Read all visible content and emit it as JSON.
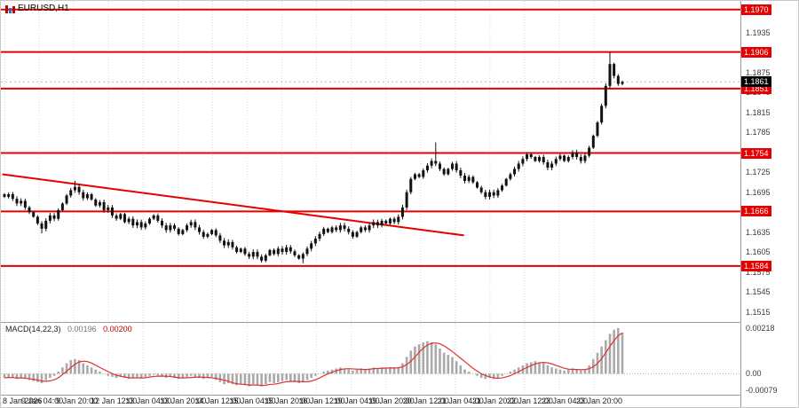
{
  "window": {
    "symbol": "EURUSD,H1"
  },
  "colors": {
    "level_line": "#e60000",
    "candle": "#111111",
    "histogram": "#a9a9a9",
    "signal_line": "#e03030",
    "grid": "#d9d9d9",
    "current_dotted": "#bcbcbc",
    "separator": "#9c9c9c"
  },
  "indicator": {
    "name": "MACD(14,22,3)",
    "value_main": "0.00196",
    "value_signal": "0.00200"
  },
  "price_axis": {
    "ticks": [
      "1.1935",
      "1.1875",
      "1.1845",
      "1.1815",
      "1.1785",
      "1.1725",
      "1.1695",
      "1.1635",
      "1.1605",
      "1.1575",
      "1.1545",
      "1.1515"
    ],
    "level_labels": [
      "1.1970",
      "1.1906",
      "1.1851",
      "1.1754",
      "1.1666",
      "1.1584"
    ],
    "current_label": "1.1861"
  },
  "time_axis": {
    "labels": [
      "8 Jan 2026",
      "9 Jan 04:00",
      "9 Jan 20:00",
      "12 Jan 12:00",
      "13 Jan 04:00",
      "13 Jan 20:00",
      "14 Jan 12:00",
      "15 Jan 04:00",
      "15 Jan 20:00",
      "16 Jan 12:00",
      "19 Jan 04:00",
      "19 Jan 20:00",
      "20 Jan 12:00",
      "21 Jan 04:00",
      "21 Jan 20:00",
      "22 Jan 12:00",
      "23 Jan 04:00",
      "23 Jan 20:00"
    ]
  },
  "chart_data": [
    {
      "type": "candlestick",
      "title": "EURUSD H1",
      "ylim": [
        1.1505,
        1.1975
      ],
      "levels": [
        1.197,
        1.1906,
        1.1851,
        1.1754,
        1.1666,
        1.1584
      ],
      "current_price": 1.1861,
      "trendline": {
        "from_x_frac": 0.002,
        "from_price": 1.1722,
        "to_x_frac": 0.624,
        "to_price": 1.163
      },
      "closes": [
        1.1688,
        1.1692,
        1.1685,
        1.1678,
        1.1682,
        1.1672,
        1.1665,
        1.1658,
        1.1648,
        1.164,
        1.1652,
        1.166,
        1.1655,
        1.1668,
        1.1678,
        1.169,
        1.1698,
        1.1703,
        1.1695,
        1.1686,
        1.1692,
        1.1684,
        1.1675,
        1.168,
        1.1668,
        1.1672,
        1.166,
        1.1655,
        1.1662,
        1.165,
        1.1655,
        1.1645,
        1.165,
        1.1642,
        1.1648,
        1.1655,
        1.166,
        1.1652,
        1.1645,
        1.1638,
        1.1645,
        1.164,
        1.1632,
        1.1638,
        1.1645,
        1.165,
        1.1642,
        1.1635,
        1.1628,
        1.1632,
        1.1638,
        1.163,
        1.1622,
        1.1615,
        1.162,
        1.1612,
        1.1605,
        1.161,
        1.1602,
        1.1598,
        1.1605,
        1.1598,
        1.1592,
        1.16,
        1.1608,
        1.1602,
        1.161,
        1.1605,
        1.1612,
        1.1606,
        1.16,
        1.1595,
        1.1602,
        1.161,
        1.1618,
        1.1625,
        1.1632,
        1.164,
        1.1635,
        1.1642,
        1.1638,
        1.1645,
        1.164,
        1.1635,
        1.1628,
        1.1635,
        1.1642,
        1.1638,
        1.1645,
        1.165,
        1.1645,
        1.1652,
        1.1648,
        1.1655,
        1.165,
        1.1658,
        1.1672,
        1.1695,
        1.1715,
        1.1722,
        1.1718,
        1.1728,
        1.1735,
        1.1742,
        1.1738,
        1.173,
        1.1722,
        1.173,
        1.1738,
        1.1728,
        1.172,
        1.1712,
        1.1718,
        1.171,
        1.1702,
        1.1695,
        1.1688,
        1.1695,
        1.169,
        1.1698,
        1.1705,
        1.1715,
        1.1722,
        1.173,
        1.1738,
        1.1745,
        1.1752,
        1.1748,
        1.1742,
        1.1748,
        1.174,
        1.1732,
        1.1738,
        1.1745,
        1.175,
        1.1742,
        1.1748,
        1.1755,
        1.1748,
        1.1742,
        1.175,
        1.1762,
        1.178,
        1.18,
        1.1825,
        1.1855,
        1.1888,
        1.187,
        1.1858,
        1.1861
      ],
      "wick_overrides": {
        "9": {
          "low": 1.1633
        },
        "17": {
          "high": 1.1712
        },
        "62": {
          "low": 1.1589
        },
        "72": {
          "low": 1.1588
        },
        "104": {
          "high": 1.177
        },
        "146": {
          "high": 1.1906
        },
        "147": {
          "high": 1.189
        }
      }
    },
    {
      "type": "bar",
      "name": "MACD(14,22,3)",
      "ylim": [
        -0.001,
        0.0023
      ],
      "axis_labels": [
        {
          "value": 0.00218,
          "label": "0.00218"
        },
        {
          "value": 0.0,
          "label": "0.00"
        },
        {
          "value": -0.00079,
          "label": "-0.00079"
        }
      ],
      "values": [
        -0.0002,
        -0.00015,
        -0.0002,
        -0.00025,
        -0.0002,
        -0.00025,
        -0.0003,
        -0.00035,
        -0.0004,
        -0.00045,
        -0.0003,
        -0.0002,
        -0.0001,
        0.0001,
        0.0003,
        0.0005,
        0.00065,
        0.0007,
        0.00065,
        0.0005,
        0.0004,
        0.0003,
        0.0002,
        0.0001,
        0.0,
        -0.0001,
        -0.00015,
        -0.0002,
        -0.00015,
        -0.0002,
        -0.00025,
        -0.0002,
        -0.00015,
        -0.0002,
        -0.00015,
        -0.0001,
        -5e-05,
        -0.0001,
        -0.00015,
        -0.0002,
        -0.00015,
        -0.0002,
        -0.00025,
        -0.0002,
        -0.00015,
        -0.0001,
        -0.00015,
        -0.0002,
        -0.00025,
        -0.0002,
        -0.00015,
        -0.0003,
        -0.0004,
        -0.0005,
        -0.00045,
        -0.0005,
        -0.00055,
        -0.0005,
        -0.00055,
        -0.0006,
        -0.0005,
        -0.00055,
        -0.0006,
        -0.0005,
        -0.0004,
        -0.00045,
        -0.0004,
        -0.00035,
        -0.0003,
        -0.00035,
        -0.0004,
        -0.00045,
        -0.0004,
        -0.0003,
        -0.0002,
        -0.0001,
        0.0,
        0.0001,
        0.00015,
        0.0002,
        0.00025,
        0.0003,
        0.00025,
        0.0002,
        0.00015,
        0.0002,
        0.00025,
        0.0002,
        0.00025,
        0.0003,
        0.00025,
        0.0003,
        0.00025,
        0.0003,
        0.00028,
        0.0003,
        0.0005,
        0.0008,
        0.0011,
        0.0013,
        0.0014,
        0.0015,
        0.00155,
        0.0015,
        0.0014,
        0.0012,
        0.001,
        0.0009,
        0.0008,
        0.0006,
        0.0004,
        0.0002,
        0.0001,
        0.0,
        -0.0001,
        -0.0002,
        -0.00025,
        -0.0002,
        -0.00025,
        -0.0002,
        -0.0001,
        0.0,
        0.0001,
        0.0002,
        0.0003,
        0.0004,
        0.0005,
        0.00055,
        0.0006,
        0.00055,
        0.0005,
        0.0004,
        0.0003,
        0.00025,
        0.0002,
        0.00015,
        0.0002,
        0.00025,
        0.0002,
        0.00015,
        0.0002,
        0.0004,
        0.0007,
        0.001,
        0.0013,
        0.0016,
        0.0019,
        0.0021,
        0.00218,
        0.00196
      ]
    }
  ]
}
